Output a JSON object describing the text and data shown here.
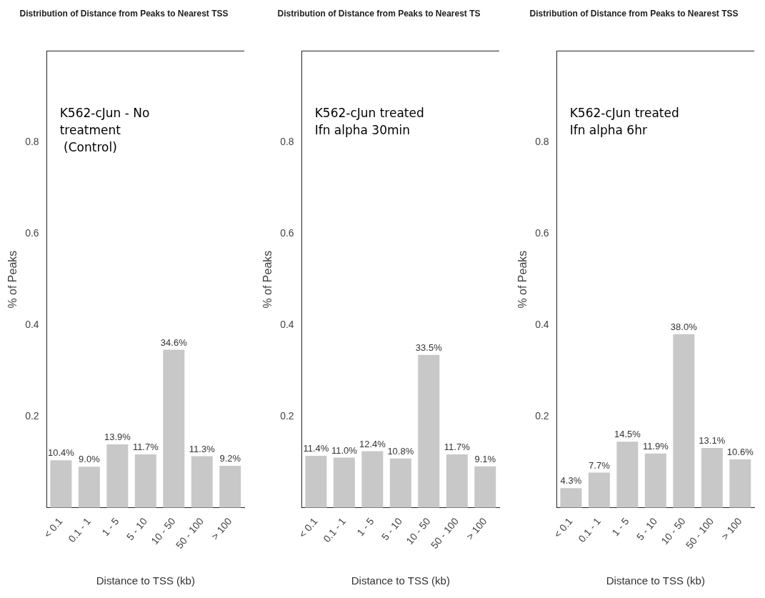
{
  "chart_data": [
    {
      "type": "bar",
      "title": "Distribution of Distance from Peaks to Nearest TSS",
      "xlabel": "Distance to TSS (kb)",
      "ylabel": "% of Peaks",
      "categories": [
        "< 0.1",
        "0.1 - 1",
        "1 - 5",
        "5 - 10",
        "10 - 50",
        "50 - 100",
        "> 100"
      ],
      "values": [
        0.104,
        0.09,
        0.139,
        0.117,
        0.346,
        0.113,
        0.092
      ],
      "value_labels": [
        "10.4%",
        "9.0%",
        "13.9%",
        "11.7%",
        "34.6%",
        "11.3%",
        "9.2%"
      ],
      "color": "#c8c8c8",
      "ylim": [
        0,
        1
      ],
      "yticks": [
        0.2,
        0.4,
        0.6,
        0.8
      ],
      "grid": false,
      "legend": false,
      "annotations": [
        "K562-cJun - No\ntreatment\n (Control)"
      ]
    },
    {
      "type": "bar",
      "title": "Distribution of Distance from Peaks to Nearest TS",
      "xlabel": "Distance to TSS (kb)",
      "ylabel": "% of Peaks",
      "categories": [
        "< 0.1",
        "0.1 - 1",
        "1 - 5",
        "5 - 10",
        "10 - 50",
        "50 - 100",
        "> 100"
      ],
      "values": [
        0.114,
        0.11,
        0.124,
        0.108,
        0.335,
        0.117,
        0.091
      ],
      "value_labels": [
        "11.4%",
        "11.0%",
        "12.4%",
        "10.8%",
        "33.5%",
        "11.7%",
        "9.1%"
      ],
      "color": "#c8c8c8",
      "ylim": [
        0,
        1
      ],
      "yticks": [
        0.2,
        0.4,
        0.6,
        0.8
      ],
      "grid": false,
      "legend": false,
      "annotations": [
        "K562-cJun treated\nIfn alpha 30min"
      ]
    },
    {
      "type": "bar",
      "title": "Distribution of Distance from Peaks to Nearest TSS",
      "xlabel": "Distance to TSS (kb)",
      "ylabel": "% of Peaks",
      "categories": [
        "< 0.1",
        "0.1 - 1",
        "1 - 5",
        "5 - 10",
        "10 - 50",
        "50 - 100",
        "> 100"
      ],
      "values": [
        0.043,
        0.077,
        0.145,
        0.119,
        0.38,
        0.131,
        0.106
      ],
      "value_labels": [
        "4.3%",
        "7.7%",
        "14.5%",
        "11.9%",
        "38.0%",
        "13.1%",
        "10.6%"
      ],
      "color": "#c8c8c8",
      "ylim": [
        0,
        1
      ],
      "yticks": [
        0.2,
        0.4,
        0.6,
        0.8
      ],
      "grid": false,
      "legend": false,
      "annotations": [
        "K562-cJun treated\nIfn alpha 6hr"
      ]
    }
  ]
}
